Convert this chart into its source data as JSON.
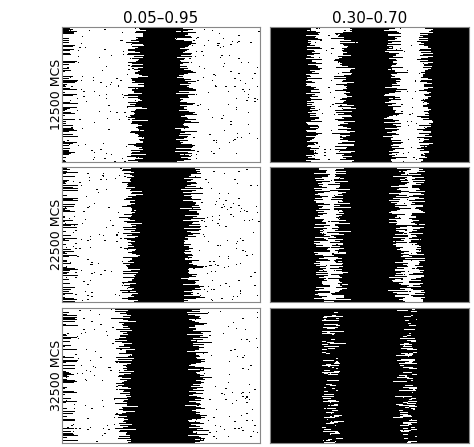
{
  "col_titles": [
    "0.05–0.95",
    "0.30–0.70"
  ],
  "row_labels": [
    "12500 MCS",
    "22500 MCS",
    "32500 MCS"
  ],
  "background_color": "#ffffff",
  "figsize": [
    4.74,
    4.47
  ],
  "dpi": 100,
  "grid_rows": 3,
  "grid_cols": 2,
  "sim_size": 150,
  "title_fontsize": 11,
  "label_fontsize": 9
}
